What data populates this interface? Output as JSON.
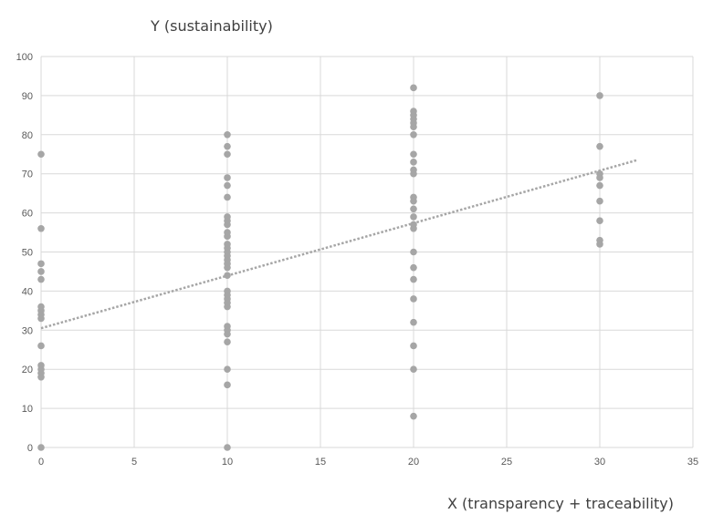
{
  "chart_data": {
    "type": "scatter",
    "ylabel": "Y (sustainability)",
    "xlabel": "X (transparency + traceability)",
    "xlim": [
      0,
      35
    ],
    "ylim": [
      0,
      100
    ],
    "xticks": [
      0,
      5,
      10,
      15,
      20,
      25,
      30,
      35
    ],
    "yticks": [
      0,
      10,
      20,
      30,
      40,
      50,
      60,
      70,
      80,
      90,
      100
    ],
    "grid": true,
    "legend": "none",
    "colors": {
      "points": "#a6a6a6",
      "trendline": "#a6a6a6",
      "grid": "#d9d9d9"
    },
    "series": [
      {
        "points": [
          [
            0,
            75
          ],
          [
            0,
            56
          ],
          [
            0,
            47
          ],
          [
            0,
            45
          ],
          [
            0,
            43
          ],
          [
            0,
            36
          ],
          [
            0,
            35
          ],
          [
            0,
            34
          ],
          [
            0,
            33
          ],
          [
            0,
            26
          ],
          [
            0,
            21
          ],
          [
            0,
            20
          ],
          [
            0,
            19
          ],
          [
            0,
            18
          ],
          [
            0,
            0
          ],
          [
            10,
            80
          ],
          [
            10,
            77
          ],
          [
            10,
            75
          ],
          [
            10,
            69
          ],
          [
            10,
            67
          ],
          [
            10,
            64
          ],
          [
            10,
            59
          ],
          [
            10,
            58
          ],
          [
            10,
            57
          ],
          [
            10,
            55
          ],
          [
            10,
            54
          ],
          [
            10,
            52
          ],
          [
            10,
            51
          ],
          [
            10,
            50
          ],
          [
            10,
            49
          ],
          [
            10,
            48
          ],
          [
            10,
            47
          ],
          [
            10,
            46
          ],
          [
            10,
            44
          ],
          [
            10,
            40
          ],
          [
            10,
            39
          ],
          [
            10,
            38
          ],
          [
            10,
            37
          ],
          [
            10,
            36
          ],
          [
            10,
            31
          ],
          [
            10,
            30
          ],
          [
            10,
            29
          ],
          [
            10,
            27
          ],
          [
            10,
            20
          ],
          [
            10,
            16
          ],
          [
            10,
            0
          ],
          [
            20,
            92
          ],
          [
            20,
            86
          ],
          [
            20,
            85
          ],
          [
            20,
            84
          ],
          [
            20,
            83
          ],
          [
            20,
            82
          ],
          [
            20,
            80
          ],
          [
            20,
            75
          ],
          [
            20,
            73
          ],
          [
            20,
            71
          ],
          [
            20,
            70
          ],
          [
            20,
            64
          ],
          [
            20,
            63
          ],
          [
            20,
            61
          ],
          [
            20,
            59
          ],
          [
            20,
            57
          ],
          [
            20,
            56
          ],
          [
            20,
            50
          ],
          [
            20,
            46
          ],
          [
            20,
            43
          ],
          [
            20,
            38
          ],
          [
            20,
            32
          ],
          [
            20,
            26
          ],
          [
            20,
            20
          ],
          [
            20,
            8
          ],
          [
            30,
            90
          ],
          [
            30,
            77
          ],
          [
            30,
            70
          ],
          [
            30,
            69
          ],
          [
            30,
            67
          ],
          [
            30,
            63
          ],
          [
            30,
            58
          ],
          [
            30,
            53
          ],
          [
            30,
            52
          ]
        ]
      }
    ],
    "trendline": {
      "x": [
        0,
        32
      ],
      "y": [
        30.5,
        73.5
      ],
      "style": "dotted"
    }
  }
}
